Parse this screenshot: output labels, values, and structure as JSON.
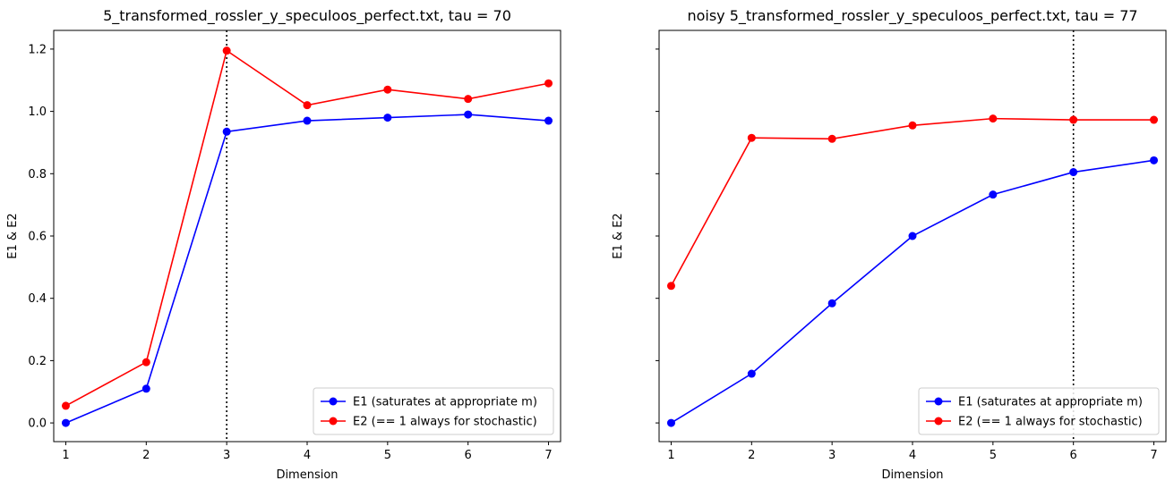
{
  "chart_data": [
    {
      "type": "line",
      "title": "5_transformed_rossler_y_speculoos_perfect.txt, tau = 70",
      "xlabel": "Dimension",
      "ylabel": "E1 & E2",
      "x": [
        1,
        2,
        3,
        4,
        5,
        6,
        7
      ],
      "xlim": [
        0.85,
        7.15
      ],
      "ylim": [
        -0.06,
        1.26
      ],
      "xticks": [
        "1",
        "2",
        "3",
        "4",
        "5",
        "6",
        "7"
      ],
      "yticks": [
        "0.0",
        "0.2",
        "0.4",
        "0.6",
        "0.8",
        "1.0",
        "1.2"
      ],
      "show_yticklabels": true,
      "vline_x": 3,
      "legend_position": "lower right",
      "grid": false,
      "series": [
        {
          "name": "E1 (saturates at appropriate m)",
          "color": "#0000ff",
          "values": [
            0.0,
            0.11,
            0.935,
            0.97,
            0.98,
            0.99,
            0.97
          ]
        },
        {
          "name": "E2 (== 1 always for stochastic)",
          "color": "#ff0000",
          "values": [
            0.055,
            0.195,
            1.195,
            1.02,
            1.07,
            1.04,
            1.09
          ]
        }
      ]
    },
    {
      "type": "line",
      "title": "noisy 5_transformed_rossler_y_speculoos_perfect.txt, tau = 77",
      "xlabel": "Dimension",
      "ylabel": "E1 & E2",
      "x": [
        1,
        2,
        3,
        4,
        5,
        6,
        7
      ],
      "xlim": [
        0.85,
        7.15
      ],
      "ylim": [
        -0.06,
        1.26
      ],
      "xticks": [
        "1",
        "2",
        "3",
        "4",
        "5",
        "6",
        "7"
      ],
      "yticks": [
        "0.0",
        "0.2",
        "0.4",
        "0.6",
        "0.8",
        "1.0",
        "1.2"
      ],
      "show_yticklabels": false,
      "vline_x": 6,
      "legend_position": "lower right",
      "grid": false,
      "series": [
        {
          "name": "E1 (saturates at appropriate m)",
          "color": "#0000ff",
          "values": [
            0.0,
            0.158,
            0.384,
            0.6,
            0.733,
            0.805,
            0.843
          ]
        },
        {
          "name": "E2 (== 1 always for stochastic)",
          "color": "#ff0000",
          "values": [
            0.44,
            0.915,
            0.912,
            0.955,
            0.977,
            0.973,
            0.973
          ]
        }
      ]
    }
  ]
}
